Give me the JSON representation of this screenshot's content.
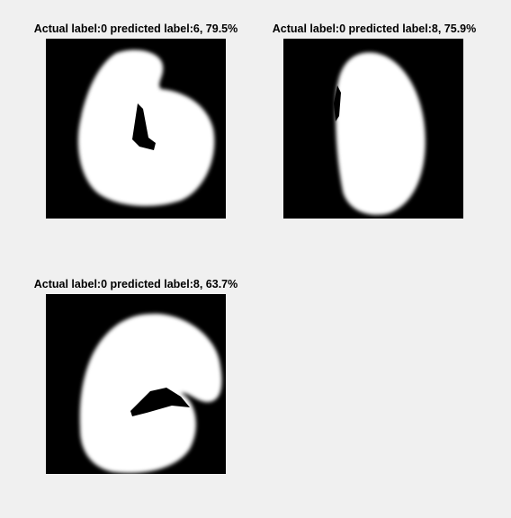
{
  "panels": [
    {
      "title": "Actual label:0 predicted label:6, 79.5%"
    },
    {
      "title": "Actual label:0 predicted label:8, 75.9%"
    },
    {
      "title": "Actual label:0 predicted label:8, 63.7%"
    }
  ]
}
